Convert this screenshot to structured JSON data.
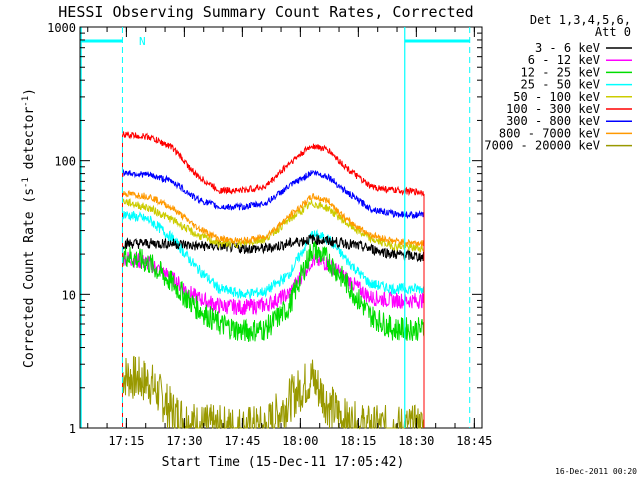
{
  "chart_data": {
    "type": "line",
    "title": "HESSI Observing Summary Count Rates, Corrected",
    "xlabel": "Start Time (15-Dec-11 17:05:42)",
    "ylabel": "Corrected Count Rate (s",
    "ylabel_exp1": "-1",
    "ylabel_mid": " detector",
    "ylabel_exp2": "-1",
    "ylabel_end": ")",
    "y_scale": "log",
    "ylim": [
      1,
      1000
    ],
    "y_ticks": [
      {
        "value": 1,
        "label": "1"
      },
      {
        "value": 10,
        "label": "10"
      },
      {
        "value": 100,
        "label": "100"
      },
      {
        "value": 1000,
        "label": "1000"
      }
    ],
    "x_range_minutes": [
      17.05,
      18.783
    ],
    "x_ticks": [
      {
        "value": 17.25,
        "label": "17:15"
      },
      {
        "value": 17.5,
        "label": "17:30"
      },
      {
        "value": 17.75,
        "label": "17:45"
      },
      {
        "value": 18.0,
        "label": "18:00"
      },
      {
        "value": 18.25,
        "label": "18:15"
      },
      {
        "value": 18.5,
        "label": "18:30"
      },
      {
        "value": 18.75,
        "label": "18:45"
      }
    ],
    "legend_header": [
      "Det 1,3,4,5,6,",
      "Att 0"
    ],
    "legend_placement": "outside-right",
    "footer_stamp": "16-Dec-2011 00:20",
    "night_marker_label": "N",
    "data_start_hours": 17.233,
    "data_end_hours": 18.533,
    "shape_hours": [
      17.233,
      17.35,
      17.45,
      17.55,
      17.65,
      17.75,
      17.85,
      17.95,
      18.05,
      18.12,
      18.2,
      18.3,
      18.4,
      18.533
    ],
    "series": [
      {
        "name": "3 - 6 keV",
        "color": "#000000",
        "values": [
          24,
          24,
          24,
          23,
          23,
          22,
          22,
          24,
          26,
          25,
          24,
          22,
          20,
          19
        ]
      },
      {
        "name": "6 - 12 keV",
        "color": "#ff00ff",
        "values": [
          19,
          17,
          13,
          9.5,
          8.2,
          8,
          8.3,
          10,
          18,
          17,
          13,
          9.5,
          9,
          9
        ]
      },
      {
        "name": "12 - 25 keV",
        "color": "#00dd00",
        "values": [
          20,
          17,
          12,
          8,
          6,
          5.3,
          5.5,
          8,
          22,
          18,
          12,
          7,
          5.5,
          5.5
        ]
      },
      {
        "name": "25 - 50 keV",
        "color": "#00ffff",
        "values": [
          40,
          36,
          26,
          16,
          11,
          10,
          10.5,
          14,
          28,
          26,
          18,
          12,
          11,
          11
        ]
      },
      {
        "name": "50 - 100 keV",
        "color": "#cccc00",
        "values": [
          50,
          44,
          36,
          28,
          24,
          24,
          26,
          36,
          48,
          44,
          34,
          26,
          23,
          22
        ]
      },
      {
        "name": "100 - 300 keV",
        "color": "#ff0000",
        "values": [
          158,
          150,
          125,
          78,
          60,
          60,
          64,
          95,
          130,
          120,
          88,
          64,
          60,
          58
        ]
      },
      {
        "name": "300 - 800 keV",
        "color": "#0000ff",
        "values": [
          82,
          78,
          70,
          52,
          45,
          45,
          48,
          64,
          82,
          76,
          58,
          44,
          40,
          39
        ]
      },
      {
        "name": "800 - 7000 keV",
        "color": "#ff9900",
        "values": [
          57,
          54,
          44,
          32,
          26,
          25,
          27,
          38,
          54,
          50,
          36,
          28,
          25,
          24
        ]
      },
      {
        "name": "7000 - 20000 keV",
        "color": "#999900",
        "values": [
          2.5,
          2.2,
          1.3,
          1.05,
          1.0,
          1.0,
          1.0,
          1.6,
          2.4,
          1.5,
          1.1,
          1.0,
          1.0,
          1.0
        ]
      }
    ],
    "cyan_markers": {
      "saa_start_hours": 18.45,
      "saa_dash_hours": [
        17.233,
        18.73
      ],
      "solid_lines_hours": [
        17.055,
        18.45
      ]
    }
  }
}
